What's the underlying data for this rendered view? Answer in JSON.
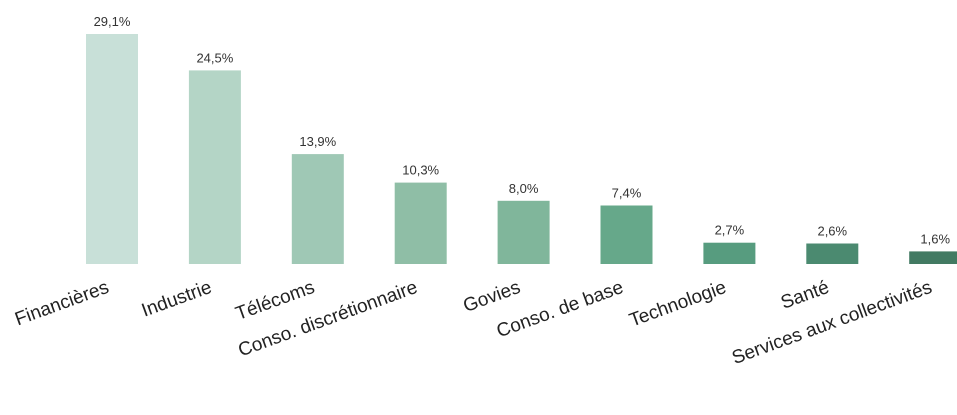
{
  "chart_data": {
    "type": "bar",
    "categories": [
      "Financières",
      "Industrie",
      "Télécoms",
      "Conso. discrétionnaire",
      "Govies",
      "Conso. de base",
      "Technologie",
      "Santé",
      "Services aux collectivités"
    ],
    "values": [
      29.1,
      24.5,
      13.9,
      10.3,
      8.0,
      7.4,
      2.7,
      2.6,
      1.6
    ],
    "data_labels": [
      "29,1%",
      "24,5%",
      "13,9%",
      "10,3%",
      "8,0%",
      "7,4%",
      "2,7%",
      "2,6%",
      "1,6%"
    ],
    "colors": [
      "#c8e0d8",
      "#b4d5c6",
      "#9fc8b5",
      "#8fbea6",
      "#80b69b",
      "#66a88a",
      "#579c7f",
      "#4b8a70",
      "#427a62"
    ],
    "ylim": [
      0,
      29.1
    ],
    "grid": false,
    "legend": "none",
    "title": "",
    "xlabel": "",
    "ylabel": ""
  }
}
